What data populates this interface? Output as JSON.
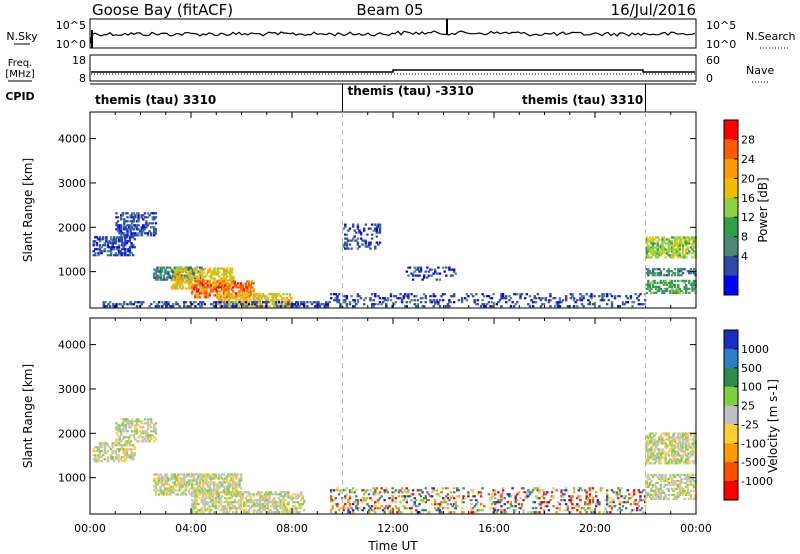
{
  "header": {
    "station": "Goose Bay (fitACF)",
    "beam": "Beam 05",
    "date": "16/Jul/2016"
  },
  "noise_panel": {
    "left_label": "N.Sky",
    "right_label": "N.Search",
    "left_ticks": [
      "10^5",
      "10^0"
    ],
    "right_ticks": [
      "10^5",
      "10^0"
    ]
  },
  "freq_panel": {
    "left_label_line1": "Freq.",
    "left_label_line2": "[MHz]",
    "right_label": "Nave",
    "left_ticks": [
      "18",
      "8"
    ],
    "right_ticks": [
      "60",
      "0"
    ]
  },
  "cpid_panel": {
    "label": "CPID",
    "segments": [
      {
        "text": "themis (tau) 3310",
        "start_h": 0,
        "end_h": 10
      },
      {
        "text": "themis (tau) -3310",
        "start_h": 10,
        "end_h": 22
      },
      {
        "text": "themis (tau) 3310",
        "start_h": 22,
        "end_h": 24
      }
    ],
    "mid_label": "themis (tau) 3310"
  },
  "power_colorbar": {
    "label": "Power [dB]",
    "ticks": [
      "28",
      "24",
      "20",
      "16",
      "12",
      "8",
      "4"
    ],
    "colors": [
      "#ff0000",
      "#ff5a00",
      "#ff9a00",
      "#f0c000",
      "#8fd040",
      "#2ea04a",
      "#4a8878",
      "#2c4aa8",
      "#0000ff"
    ]
  },
  "velocity_colorbar": {
    "label": "Velocity [m s-1]",
    "ticks": [
      "1000",
      "500",
      "100",
      "25",
      "-25",
      "-100",
      "-500",
      "-1000"
    ],
    "colors": [
      "#1a2ec0",
      "#2a80c8",
      "#2e8b4a",
      "#7fd040",
      "#c0c0c0",
      "#ffd030",
      "#ff9a00",
      "#ff5000",
      "#ff0000"
    ]
  },
  "chart_data": [
    {
      "type": "heatmap",
      "name": "power",
      "ylabel": "Slant Range [km]",
      "yticks": [
        1000,
        2000,
        3000,
        4000
      ],
      "ylim": [
        180,
        4600
      ],
      "xlim": [
        0,
        24
      ],
      "regions": [
        {
          "t0": 0.1,
          "t1": 1.8,
          "r0": 1350,
          "r1": 1800,
          "c": 7,
          "d": 0.55
        },
        {
          "t0": 1.0,
          "t1": 2.6,
          "r0": 1800,
          "r1": 2350,
          "c": 7,
          "d": 0.5
        },
        {
          "t0": 2.5,
          "t1": 4.5,
          "r0": 800,
          "r1": 1100,
          "c": 6,
          "d": 0.6
        },
        {
          "t0": 3.2,
          "t1": 5.7,
          "r0": 600,
          "r1": 1100,
          "c": 3,
          "d": 0.5
        },
        {
          "t0": 4.0,
          "t1": 6.5,
          "r0": 400,
          "r1": 800,
          "c": 1,
          "d": 0.55
        },
        {
          "t0": 5.0,
          "t1": 8.0,
          "r0": 200,
          "r1": 500,
          "c": 3,
          "d": 0.55
        },
        {
          "t0": 0.5,
          "t1": 9.5,
          "r0": 200,
          "r1": 350,
          "c": 7,
          "d": 0.4
        },
        {
          "t0": 9.5,
          "t1": 22,
          "r0": 200,
          "r1": 500,
          "c": 7,
          "d": 0.22
        },
        {
          "t0": 10.0,
          "t1": 11.5,
          "r0": 1500,
          "r1": 2100,
          "c": 7,
          "d": 0.3
        },
        {
          "t0": 12.5,
          "t1": 14.5,
          "r0": 800,
          "r1": 1100,
          "c": 7,
          "d": 0.2
        },
        {
          "t0": 22.0,
          "t1": 24.0,
          "r0": 1300,
          "r1": 1800,
          "c": 4,
          "d": 0.6
        },
        {
          "t0": 22.0,
          "t1": 24.0,
          "r0": 900,
          "r1": 1100,
          "c": 6,
          "d": 0.45
        },
        {
          "t0": 22.0,
          "t1": 24.0,
          "r0": 500,
          "r1": 800,
          "c": 5,
          "d": 0.5
        }
      ]
    },
    {
      "type": "heatmap",
      "name": "velocity",
      "ylabel": "Slant Range [km]",
      "xlabel": "Time UT",
      "xticks": [
        "00:00",
        "04:00",
        "08:00",
        "12:00",
        "16:00",
        "20:00",
        "00:00"
      ],
      "yticks": [
        1000,
        2000,
        3000,
        4000
      ],
      "ylim": [
        180,
        4600
      ],
      "xlim": [
        0,
        24
      ],
      "regions": [
        {
          "t0": 0.1,
          "t1": 1.8,
          "r0": 1350,
          "r1": 1800,
          "c": 4,
          "d": 0.55
        },
        {
          "t0": 1.0,
          "t1": 2.6,
          "r0": 1800,
          "r1": 2350,
          "c": 4,
          "d": 0.5
        },
        {
          "t0": 2.5,
          "t1": 6.0,
          "r0": 600,
          "r1": 1100,
          "c": 4,
          "d": 0.6
        },
        {
          "t0": 4.0,
          "t1": 8.5,
          "r0": 200,
          "r1": 700,
          "c": 4,
          "d": 0.55
        },
        {
          "t0": 9.5,
          "t1": 22,
          "r0": 200,
          "r1": 800,
          "c": 9,
          "d": 0.25
        },
        {
          "t0": 22.0,
          "t1": 24.0,
          "r0": 1300,
          "r1": 2000,
          "c": 4,
          "d": 0.6
        },
        {
          "t0": 22.0,
          "t1": 24.0,
          "r0": 500,
          "r1": 1100,
          "c": 4,
          "d": 0.5
        }
      ]
    }
  ]
}
